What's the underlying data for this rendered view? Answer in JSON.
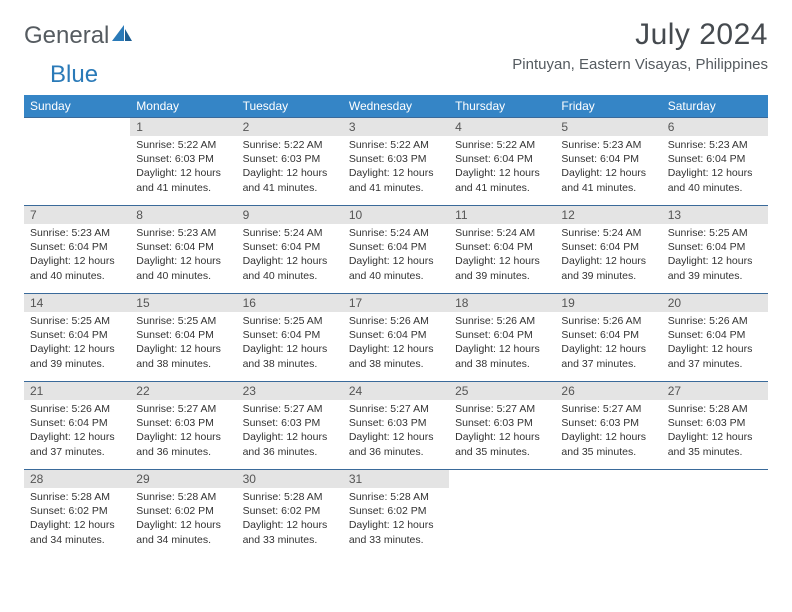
{
  "brand": {
    "part1": "General",
    "part2": "Blue"
  },
  "title": "July 2024",
  "location": "Pintuyan, Eastern Visayas, Philippines",
  "colors": {
    "header_bg": "#3585c6",
    "row_border": "#3a6a9a",
    "daynum_bg": "#e4e4e4",
    "text_dark": "#333333",
    "brand_gray": "#555b60",
    "brand_blue": "#2a7ab8"
  },
  "weekdays": [
    "Sunday",
    "Monday",
    "Tuesday",
    "Wednesday",
    "Thursday",
    "Friday",
    "Saturday"
  ],
  "start_offset": 1,
  "days": [
    {
      "n": 1,
      "sr": "5:22 AM",
      "ss": "6:03 PM",
      "dl": "12 hours and 41 minutes."
    },
    {
      "n": 2,
      "sr": "5:22 AM",
      "ss": "6:03 PM",
      "dl": "12 hours and 41 minutes."
    },
    {
      "n": 3,
      "sr": "5:22 AM",
      "ss": "6:03 PM",
      "dl": "12 hours and 41 minutes."
    },
    {
      "n": 4,
      "sr": "5:22 AM",
      "ss": "6:04 PM",
      "dl": "12 hours and 41 minutes."
    },
    {
      "n": 5,
      "sr": "5:23 AM",
      "ss": "6:04 PM",
      "dl": "12 hours and 41 minutes."
    },
    {
      "n": 6,
      "sr": "5:23 AM",
      "ss": "6:04 PM",
      "dl": "12 hours and 40 minutes."
    },
    {
      "n": 7,
      "sr": "5:23 AM",
      "ss": "6:04 PM",
      "dl": "12 hours and 40 minutes."
    },
    {
      "n": 8,
      "sr": "5:23 AM",
      "ss": "6:04 PM",
      "dl": "12 hours and 40 minutes."
    },
    {
      "n": 9,
      "sr": "5:24 AM",
      "ss": "6:04 PM",
      "dl": "12 hours and 40 minutes."
    },
    {
      "n": 10,
      "sr": "5:24 AM",
      "ss": "6:04 PM",
      "dl": "12 hours and 40 minutes."
    },
    {
      "n": 11,
      "sr": "5:24 AM",
      "ss": "6:04 PM",
      "dl": "12 hours and 39 minutes."
    },
    {
      "n": 12,
      "sr": "5:24 AM",
      "ss": "6:04 PM",
      "dl": "12 hours and 39 minutes."
    },
    {
      "n": 13,
      "sr": "5:25 AM",
      "ss": "6:04 PM",
      "dl": "12 hours and 39 minutes."
    },
    {
      "n": 14,
      "sr": "5:25 AM",
      "ss": "6:04 PM",
      "dl": "12 hours and 39 minutes."
    },
    {
      "n": 15,
      "sr": "5:25 AM",
      "ss": "6:04 PM",
      "dl": "12 hours and 38 minutes."
    },
    {
      "n": 16,
      "sr": "5:25 AM",
      "ss": "6:04 PM",
      "dl": "12 hours and 38 minutes."
    },
    {
      "n": 17,
      "sr": "5:26 AM",
      "ss": "6:04 PM",
      "dl": "12 hours and 38 minutes."
    },
    {
      "n": 18,
      "sr": "5:26 AM",
      "ss": "6:04 PM",
      "dl": "12 hours and 38 minutes."
    },
    {
      "n": 19,
      "sr": "5:26 AM",
      "ss": "6:04 PM",
      "dl": "12 hours and 37 minutes."
    },
    {
      "n": 20,
      "sr": "5:26 AM",
      "ss": "6:04 PM",
      "dl": "12 hours and 37 minutes."
    },
    {
      "n": 21,
      "sr": "5:26 AM",
      "ss": "6:04 PM",
      "dl": "12 hours and 37 minutes."
    },
    {
      "n": 22,
      "sr": "5:27 AM",
      "ss": "6:03 PM",
      "dl": "12 hours and 36 minutes."
    },
    {
      "n": 23,
      "sr": "5:27 AM",
      "ss": "6:03 PM",
      "dl": "12 hours and 36 minutes."
    },
    {
      "n": 24,
      "sr": "5:27 AM",
      "ss": "6:03 PM",
      "dl": "12 hours and 36 minutes."
    },
    {
      "n": 25,
      "sr": "5:27 AM",
      "ss": "6:03 PM",
      "dl": "12 hours and 35 minutes."
    },
    {
      "n": 26,
      "sr": "5:27 AM",
      "ss": "6:03 PM",
      "dl": "12 hours and 35 minutes."
    },
    {
      "n": 27,
      "sr": "5:28 AM",
      "ss": "6:03 PM",
      "dl": "12 hours and 35 minutes."
    },
    {
      "n": 28,
      "sr": "5:28 AM",
      "ss": "6:02 PM",
      "dl": "12 hours and 34 minutes."
    },
    {
      "n": 29,
      "sr": "5:28 AM",
      "ss": "6:02 PM",
      "dl": "12 hours and 34 minutes."
    },
    {
      "n": 30,
      "sr": "5:28 AM",
      "ss": "6:02 PM",
      "dl": "12 hours and 33 minutes."
    },
    {
      "n": 31,
      "sr": "5:28 AM",
      "ss": "6:02 PM",
      "dl": "12 hours and 33 minutes."
    }
  ],
  "labels": {
    "sunrise": "Sunrise:",
    "sunset": "Sunset:",
    "daylight": "Daylight:"
  }
}
